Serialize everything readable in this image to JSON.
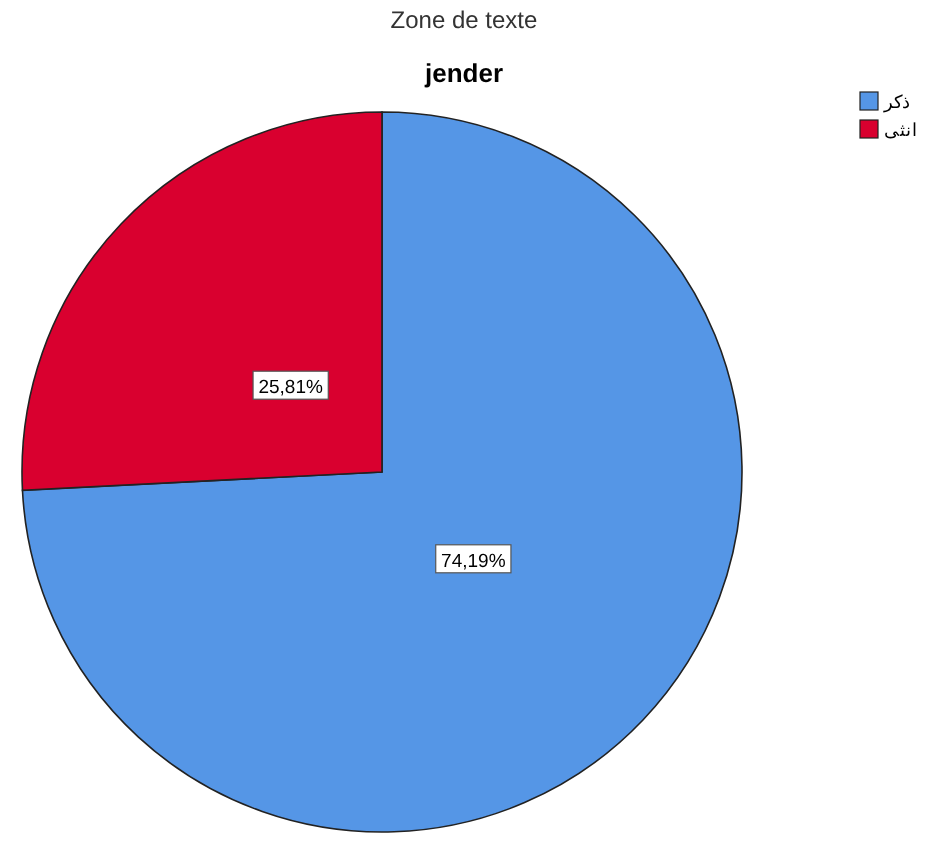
{
  "chart_data": {
    "type": "pie",
    "subtitle": "Zone de texte",
    "title": "jender",
    "categories": [
      "ذكر",
      "انثى"
    ],
    "values": [
      74.19,
      25.81
    ],
    "colors": [
      "#5596e6",
      "#d9002f"
    ],
    "value_labels": [
      "74,19%",
      "25,81%"
    ],
    "legend": "top right"
  }
}
